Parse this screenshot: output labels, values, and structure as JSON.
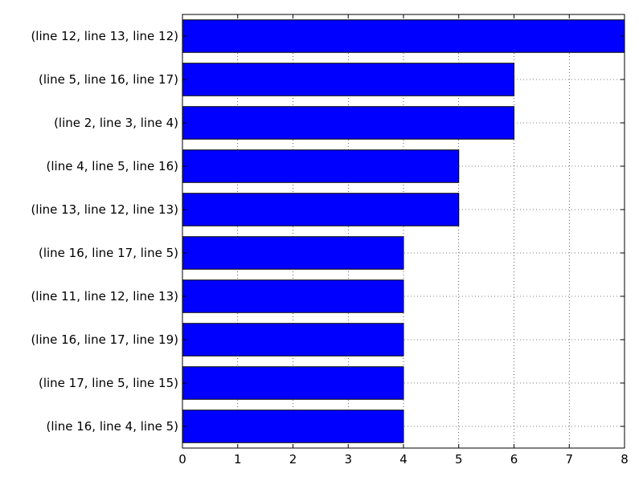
{
  "chart_data": {
    "type": "bar",
    "orientation": "horizontal",
    "categories": [
      "(line 12, line 13, line 12)",
      "(line 5, line 16, line 17)",
      "(line 2, line 3, line 4)",
      "(line 4, line 5, line 16)",
      "(line 13, line 12, line 13)",
      "(line 16, line 17, line 5)",
      "(line 11, line 12, line 13)",
      "(line 16, line 17, line 19)",
      "(line 17, line 5, line 15)",
      "(line 16, line 4, line 5)"
    ],
    "values": [
      8,
      6,
      6,
      5,
      5,
      4,
      4,
      4,
      4,
      4
    ],
    "xlim": [
      0,
      8
    ],
    "xticks": [
      0,
      1,
      2,
      3,
      4,
      5,
      6,
      7,
      8
    ],
    "title": "",
    "xlabel": "",
    "ylabel": "",
    "grid": true,
    "grid_style": "dotted",
    "bar_color": "#0000ff",
    "bar_edge_color": "#000000"
  }
}
